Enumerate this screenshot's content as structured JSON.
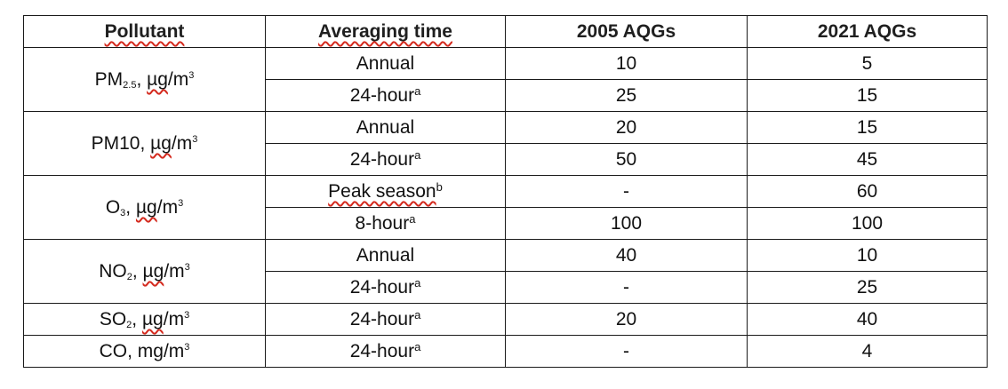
{
  "table": {
    "headers": {
      "pollutant": "Pollutant",
      "averaging_time": "Averaging time",
      "aqg_2005": "2005 AQGs",
      "aqg_2021": "2021 AQGs"
    },
    "groups": [
      {
        "name_main": "PM",
        "name_sub": "2.5",
        "name_sep": ", ",
        "unit_base": "µg",
        "unit_rest": "/m",
        "unit_sup": "3",
        "rows": [
          {
            "time": "Annual",
            "note": "",
            "v2005": "10",
            "v2021": "5"
          },
          {
            "time": "24-hour",
            "note": "a",
            "v2005": "25",
            "v2021": "15"
          }
        ]
      },
      {
        "name_main": "PM10",
        "name_sub": "",
        "name_sep": ", ",
        "unit_base": "µg",
        "unit_rest": "/m",
        "unit_sup": "3",
        "rows": [
          {
            "time": "Annual",
            "note": "",
            "v2005": "20",
            "v2021": "15"
          },
          {
            "time": "24-hour",
            "note": "a",
            "v2005": "50",
            "v2021": "45"
          }
        ]
      },
      {
        "name_main": "O",
        "name_sub": "3",
        "name_sep": ", ",
        "unit_base": "µg",
        "unit_rest": "/m",
        "unit_sup": "3",
        "rows": [
          {
            "time": "Peak season",
            "note": "b",
            "v2005": "-",
            "v2021": "60"
          },
          {
            "time": "8-hour",
            "note": "a",
            "v2005": "100",
            "v2021": "100"
          }
        ]
      },
      {
        "name_main": "NO",
        "name_sub": "2",
        "name_sep": ", ",
        "unit_base": "µg",
        "unit_rest": "/m",
        "unit_sup": "3",
        "rows": [
          {
            "time": "Annual",
            "note": "",
            "v2005": "40",
            "v2021": "10"
          },
          {
            "time": "24-hour",
            "note": "a",
            "v2005": "-",
            "v2021": "25"
          }
        ]
      },
      {
        "name_main": "SO",
        "name_sub": "2",
        "name_sep": ", ",
        "unit_base": "µg",
        "unit_rest": "/m",
        "unit_sup": "3",
        "rows": [
          {
            "time": "24-hour",
            "note": "a",
            "v2005": "20",
            "v2021": "40"
          }
        ]
      },
      {
        "name_main": "CO",
        "name_sub": "",
        "name_sep": ", ",
        "unit_base": "mg",
        "unit_rest": "/m",
        "unit_sup": "3",
        "rows": [
          {
            "time": "24-hour",
            "note": "a",
            "v2005": "-",
            "v2021": "4"
          }
        ]
      }
    ]
  },
  "styles": {
    "spellcheck_underline_color": "#d42a1e",
    "border_color": "#1a1a1a"
  }
}
